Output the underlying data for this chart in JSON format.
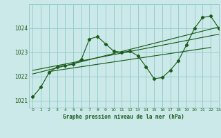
{
  "title": "Graphe pression niveau de la mer (hPa)",
  "bg_color": "#cce9e9",
  "grid_color": "#99cccc",
  "line_color": "#1a5c1a",
  "xlim": [
    -0.5,
    23
  ],
  "ylim": [
    1020.7,
    1025.0
  ],
  "yticks": [
    1021,
    1022,
    1023,
    1024
  ],
  "xticks": [
    0,
    1,
    2,
    3,
    4,
    5,
    6,
    7,
    8,
    9,
    10,
    11,
    12,
    13,
    14,
    15,
    16,
    17,
    18,
    19,
    20,
    21,
    22,
    23
  ],
  "main_x": [
    0,
    1,
    2,
    3,
    4,
    5,
    6,
    7,
    8,
    9,
    10,
    11,
    12,
    13,
    14,
    15,
    16,
    17,
    18,
    19,
    20,
    21,
    22,
    23
  ],
  "main_y": [
    1021.15,
    1021.55,
    1022.15,
    1022.4,
    1022.45,
    1022.5,
    1022.7,
    1023.55,
    1023.65,
    1023.35,
    1023.05,
    1023.0,
    1023.05,
    1022.85,
    1022.4,
    1021.9,
    1021.95,
    1022.25,
    1022.65,
    1023.3,
    1024.0,
    1024.45,
    1024.5,
    1024.0
  ],
  "trend1_x": [
    0,
    23
  ],
  "trend1_y": [
    1022.1,
    1024.05
  ],
  "trend2_x": [
    0,
    23
  ],
  "trend2_y": [
    1022.25,
    1023.75
  ],
  "trend3_x": [
    2,
    22
  ],
  "trend3_y": [
    1022.2,
    1023.2
  ]
}
